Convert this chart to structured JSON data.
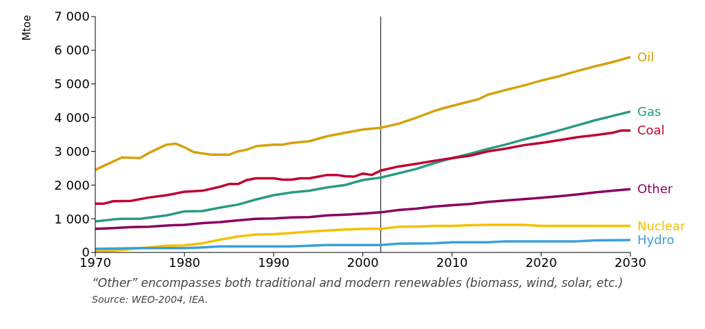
{
  "chart_data": {
    "type": "line",
    "ylabel": "Mtoe",
    "xlim": [
      1970,
      2030
    ],
    "xticks": [
      1970,
      1980,
      1990,
      2000,
      2010,
      2020,
      2030
    ],
    "ylim": [
      0,
      7000
    ],
    "yticks": [
      0,
      {
        "value": 1000,
        "label": "1 000"
      },
      {
        "value": 2000,
        "label": "2 000"
      },
      {
        "value": 3000,
        "label": "3 000"
      },
      {
        "value": 4000,
        "label": "4 000"
      },
      {
        "value": 5000,
        "label": "5 000"
      },
      {
        "value": 6000,
        "label": "6 000"
      },
      {
        "value": 7000,
        "label": "7 000"
      }
    ],
    "grid": false,
    "legend": false,
    "marker": "none",
    "line_style": "solid",
    "ref_lines": [
      {
        "axis": "x",
        "value": 2002,
        "color": "#000000"
      }
    ],
    "series": [
      {
        "name": "Oil",
        "color": "#d4a20a",
        "x": [
          1970,
          1972,
          1973,
          1975,
          1976,
          1978,
          1979,
          1980,
          1981,
          1983,
          1985,
          1986,
          1987,
          1988,
          1990,
          1991,
          1992,
          1994,
          1996,
          1998,
          2000,
          2002,
          2004,
          2006,
          2008,
          2010,
          2013,
          2014,
          2016,
          2018,
          2020,
          2022,
          2024,
          2026,
          2028,
          2030
        ],
        "values": [
          2450,
          2700,
          2820,
          2800,
          2950,
          3200,
          3230,
          3120,
          2980,
          2900,
          2900,
          3000,
          3050,
          3150,
          3200,
          3200,
          3250,
          3300,
          3450,
          3550,
          3650,
          3700,
          3820,
          4000,
          4200,
          4350,
          4550,
          4680,
          4820,
          4950,
          5100,
          5230,
          5380,
          5520,
          5650,
          5800
        ]
      },
      {
        "name": "Gas",
        "color": "#2a9a82",
        "x": [
          1970,
          1972,
          1973,
          1975,
          1978,
          1980,
          1982,
          1984,
          1986,
          1988,
          1990,
          1992,
          1994,
          1996,
          1998,
          2000,
          2002,
          2004,
          2006,
          2008,
          2010,
          2012,
          2014,
          2016,
          2018,
          2020,
          2022,
          2024,
          2026,
          2028,
          2030
        ],
        "values": [
          920,
          980,
          1000,
          1000,
          1100,
          1220,
          1230,
          1330,
          1420,
          1570,
          1700,
          1780,
          1830,
          1930,
          2000,
          2150,
          2220,
          2350,
          2480,
          2650,
          2800,
          2930,
          3070,
          3200,
          3350,
          3480,
          3620,
          3770,
          3920,
          4050,
          4180
        ]
      },
      {
        "name": "Coal",
        "color": "#c0002f",
        "x": [
          1970,
          1971,
          1972,
          1974,
          1976,
          1978,
          1980,
          1982,
          1984,
          1985,
          1986,
          1987,
          1988,
          1990,
          1991,
          1992,
          1993,
          1994,
          1996,
          1997,
          1998,
          1999,
          2000,
          2001,
          2002,
          2004,
          2006,
          2008,
          2010,
          2012,
          2014,
          2016,
          2018,
          2020,
          2022,
          2024,
          2026,
          2028,
          2029,
          2030
        ],
        "values": [
          1450,
          1450,
          1520,
          1530,
          1630,
          1700,
          1800,
          1830,
          1950,
          2030,
          2030,
          2150,
          2200,
          2200,
          2160,
          2160,
          2200,
          2200,
          2300,
          2300,
          2260,
          2250,
          2340,
          2300,
          2430,
          2550,
          2630,
          2720,
          2800,
          2870,
          3000,
          3080,
          3180,
          3250,
          3330,
          3420,
          3480,
          3550,
          3620,
          3620
        ]
      },
      {
        "name": "Other",
        "color": "#8a0060",
        "x": [
          1970,
          1972,
          1974,
          1976,
          1978,
          1980,
          1982,
          1984,
          1986,
          1988,
          1990,
          1992,
          1994,
          1996,
          1998,
          2000,
          2002,
          2004,
          2006,
          2008,
          2010,
          2012,
          2014,
          2016,
          2018,
          2020,
          2022,
          2024,
          2026,
          2028,
          2030
        ],
        "values": [
          700,
          720,
          750,
          760,
          800,
          820,
          870,
          900,
          950,
          1000,
          1010,
          1040,
          1050,
          1100,
          1120,
          1150,
          1190,
          1260,
          1300,
          1360,
          1400,
          1440,
          1500,
          1540,
          1580,
          1620,
          1670,
          1720,
          1780,
          1830,
          1880
        ]
      },
      {
        "name": "Nuclear",
        "color": "#f5c000",
        "x": [
          1970,
          1972,
          1974,
          1976,
          1978,
          1980,
          1982,
          1984,
          1986,
          1988,
          1990,
          1992,
          1994,
          1996,
          1998,
          2000,
          2002,
          2004,
          2006,
          2008,
          2010,
          2012,
          2014,
          2016,
          2018,
          2020,
          2025,
          2030
        ],
        "values": [
          40,
          50,
          100,
          150,
          200,
          210,
          270,
          380,
          470,
          530,
          540,
          580,
          620,
          650,
          680,
          700,
          700,
          760,
          770,
          790,
          790,
          810,
          820,
          820,
          820,
          790,
          790,
          790
        ]
      },
      {
        "name": "Hydro",
        "color": "#3a9fdc",
        "x": [
          1970,
          1975,
          1977,
          1980,
          1982,
          1984,
          1990,
          1992,
          1996,
          2000,
          2002,
          2004,
          2008,
          2010,
          2014,
          2016,
          2024,
          2026,
          2030
        ],
        "values": [
          110,
          130,
          130,
          130,
          150,
          180,
          180,
          180,
          220,
          220,
          220,
          260,
          270,
          300,
          300,
          330,
          330,
          360,
          370
        ]
      }
    ],
    "annotations": [
      "“Other” encompasses both traditional and modern renewables (biomass, wind, solar, etc.)",
      "Source: WEO-2004, IEA."
    ]
  }
}
